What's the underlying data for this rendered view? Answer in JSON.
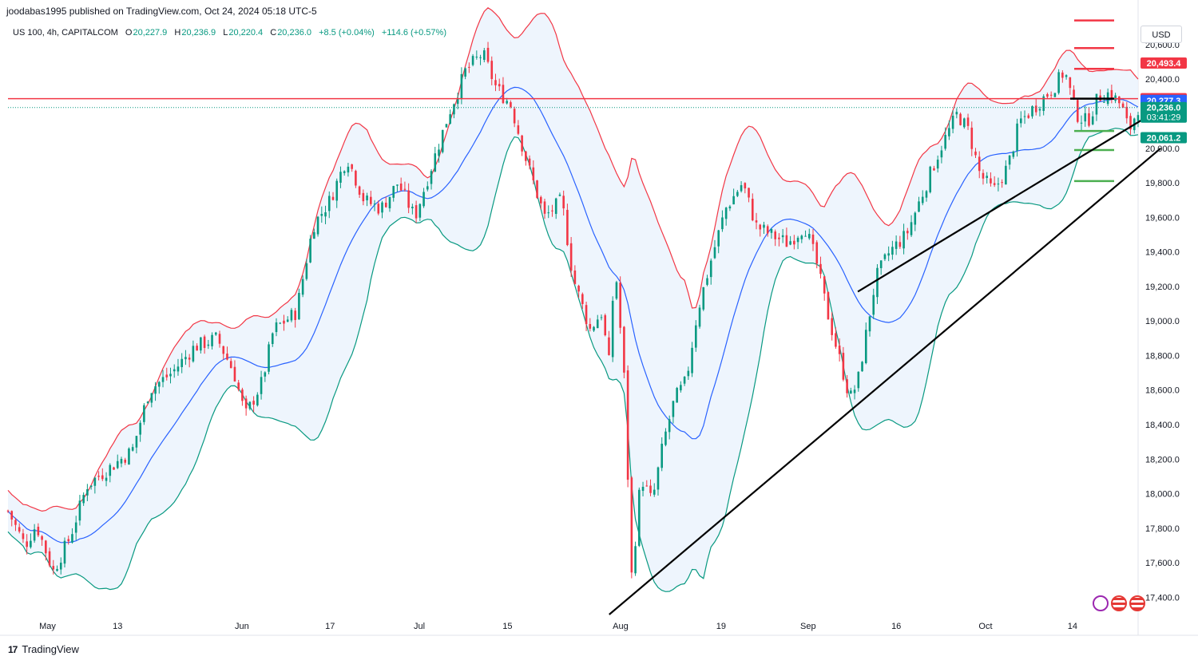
{
  "header": {
    "published_by": "joodabas1995 published on TradingView.com, Oct 24, 2024 05:18 UTC-5"
  },
  "ohlc": {
    "symbol": "US 100, 4h, CAPITALCOM",
    "open_label": "O",
    "open": "20,227.9",
    "high_label": "H",
    "high": "20,236.9",
    "low_label": "L",
    "low": "20,220.4",
    "close_label": "C",
    "close": "20,236.0",
    "change": "+8.5 (+0.04%)",
    "change2": "+114.6 (+0.57%)"
  },
  "currency": "USD",
  "footer": {
    "brand": "TradingView",
    "logo": "17"
  },
  "colors": {
    "up": "#089981",
    "down": "#f23645",
    "basis": "#2962ff",
    "upper_band": "#f23645",
    "lower_band": "#089981",
    "band_fill": "#eaf3fd",
    "resistance": "#f23645",
    "support": "#4caf50",
    "trendline": "#000000"
  },
  "chart_data": {
    "type": "candlestick",
    "symbol": "US 100",
    "interval": "4h",
    "exchange": "CAPITALCOM",
    "indicator": "Bollinger Bands",
    "ylim": [
      17300,
      20720
    ],
    "y_ticks": [
      17400,
      17600,
      17800,
      18000,
      18200,
      18400,
      18600,
      18800,
      19000,
      19200,
      19400,
      19600,
      19800,
      20000,
      20200,
      20400,
      20600
    ],
    "y_tick_labels": [
      "17,400.0",
      "17,600.0",
      "17,800.0",
      "18,000.0",
      "18,200.0",
      "18,400.0",
      "18,600.0",
      "18,800.0",
      "19,000.0",
      "19,200.0",
      "19,400.0",
      "19,600.0",
      "19,800.0",
      "20,000.0",
      "20,200.0",
      "20,400.0",
      "20,600.0"
    ],
    "x_ticks": [
      {
        "label": "May",
        "t": 0.035
      },
      {
        "label": "13",
        "t": 0.097
      },
      {
        "label": "Jun",
        "t": 0.207
      },
      {
        "label": "17",
        "t": 0.285
      },
      {
        "label": "Jul",
        "t": 0.364
      },
      {
        "label": "15",
        "t": 0.442
      },
      {
        "label": "Aug",
        "t": 0.542
      },
      {
        "label": "19",
        "t": 0.631
      },
      {
        "label": "Sep",
        "t": 0.708
      },
      {
        "label": "16",
        "t": 0.786
      },
      {
        "label": "Oct",
        "t": 0.865
      },
      {
        "label": "14",
        "t": 0.942
      }
    ],
    "price_path": [
      [
        0.0,
        17900
      ],
      [
        0.015,
        17700
      ],
      [
        0.025,
        17820
      ],
      [
        0.04,
        17550
      ],
      [
        0.055,
        17750
      ],
      [
        0.07,
        18050
      ],
      [
        0.09,
        18150
      ],
      [
        0.11,
        18250
      ],
      [
        0.125,
        18600
      ],
      [
        0.145,
        18700
      ],
      [
        0.165,
        18850
      ],
      [
        0.185,
        18900
      ],
      [
        0.2,
        18700
      ],
      [
        0.21,
        18450
      ],
      [
        0.225,
        18650
      ],
      [
        0.235,
        18950
      ],
      [
        0.255,
        19050
      ],
      [
        0.27,
        19550
      ],
      [
        0.285,
        19700
      ],
      [
        0.3,
        19950
      ],
      [
        0.315,
        19700
      ],
      [
        0.33,
        19650
      ],
      [
        0.345,
        19800
      ],
      [
        0.36,
        19600
      ],
      [
        0.375,
        19900
      ],
      [
        0.39,
        20200
      ],
      [
        0.405,
        20450
      ],
      [
        0.42,
        20550
      ],
      [
        0.432,
        20350
      ],
      [
        0.445,
        20250
      ],
      [
        0.46,
        19900
      ],
      [
        0.475,
        19600
      ],
      [
        0.49,
        19700
      ],
      [
        0.5,
        19250
      ],
      [
        0.515,
        18950
      ],
      [
        0.525,
        19050
      ],
      [
        0.532,
        18750
      ],
      [
        0.537,
        19350
      ],
      [
        0.545,
        18700
      ],
      [
        0.552,
        17500
      ],
      [
        0.56,
        18100
      ],
      [
        0.57,
        17950
      ],
      [
        0.58,
        18300
      ],
      [
        0.59,
        18550
      ],
      [
        0.6,
        18650
      ],
      [
        0.61,
        19050
      ],
      [
        0.622,
        19350
      ],
      [
        0.635,
        19650
      ],
      [
        0.65,
        19800
      ],
      [
        0.662,
        19550
      ],
      [
        0.675,
        19500
      ],
      [
        0.69,
        19450
      ],
      [
        0.705,
        19550
      ],
      [
        0.715,
        19350
      ],
      [
        0.725,
        19050
      ],
      [
        0.735,
        18800
      ],
      [
        0.745,
        18550
      ],
      [
        0.752,
        18650
      ],
      [
        0.76,
        18950
      ],
      [
        0.768,
        19250
      ],
      [
        0.78,
        19400
      ],
      [
        0.795,
        19500
      ],
      [
        0.81,
        19750
      ],
      [
        0.825,
        20000
      ],
      [
        0.84,
        20200
      ],
      [
        0.85,
        20100
      ],
      [
        0.86,
        19850
      ],
      [
        0.872,
        19750
      ],
      [
        0.885,
        19900
      ],
      [
        0.895,
        20150
      ],
      [
        0.91,
        20250
      ],
      [
        0.925,
        20350
      ],
      [
        0.935,
        20450
      ],
      [
        0.945,
        20200
      ],
      [
        0.955,
        20150
      ],
      [
        0.965,
        20300
      ],
      [
        0.975,
        20320
      ],
      [
        0.985,
        20250
      ],
      [
        0.992,
        20100
      ],
      [
        1.0,
        20236
      ]
    ],
    "horizontal_levels": [
      {
        "price": 20287.5,
        "label": "20,287.5",
        "kind": "resistance",
        "full_width": true
      },
      {
        "price": 20740,
        "kind": "resistance"
      },
      {
        "price": 20580,
        "kind": "resistance"
      },
      {
        "price": 20460,
        "kind": "resistance"
      },
      {
        "price": 20100,
        "kind": "support"
      },
      {
        "price": 19990,
        "kind": "support"
      },
      {
        "price": 19810,
        "kind": "support"
      }
    ],
    "price_tags": [
      {
        "price": 20493.4,
        "label": "20,493.4",
        "color": "#f23645"
      },
      {
        "price": 20287.5,
        "label": "20,287.5",
        "color": "#f23645"
      },
      {
        "price": 20277.3,
        "label": "20,277.3",
        "color": "#2962ff"
      },
      {
        "price": 20236.0,
        "label": "20,236.0",
        "sub": "03:41:29",
        "color": "#089981"
      },
      {
        "price": 20061.2,
        "label": "20,061.2",
        "color": "#089981"
      }
    ],
    "trendlines": [
      {
        "t1": 0.532,
        "p1": 17300,
        "t2": 1.02,
        "p2": 20000
      },
      {
        "t1": 0.752,
        "p1": 19170,
        "t2": 1.02,
        "p2": 20230
      }
    ]
  }
}
